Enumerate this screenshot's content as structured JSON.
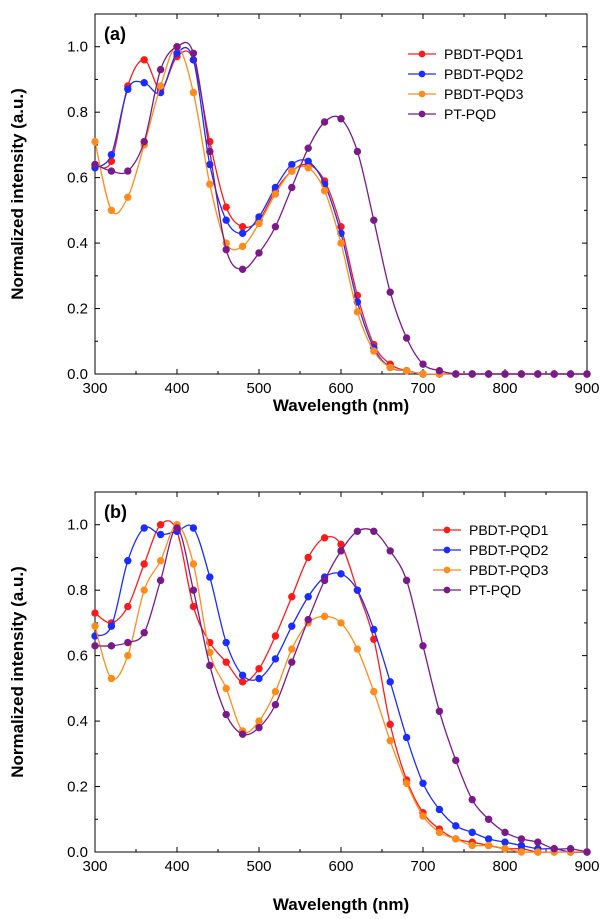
{
  "colors": {
    "PBDT-PQD1": "#ff1a1a",
    "PBDT-PQD2": "#1a2cff",
    "PBDT-PQD3": "#ff8c1a",
    "PT-PQD": "#7a1a8a"
  },
  "chart_data": [
    {
      "type": "line",
      "panel_label": "(a)",
      "xlabel": "Wavelength (nm)",
      "ylabel": "Normalized intensity (a.u.)",
      "xlim": [
        300,
        900
      ],
      "ylim": [
        0.0,
        1.1
      ],
      "xticks": [
        "300",
        "400",
        "500",
        "600",
        "700",
        "800",
        "900"
      ],
      "yticks": [
        "0.0",
        "0.2",
        "0.4",
        "0.6",
        "0.8",
        "1.0"
      ],
      "legend_position": "top-right",
      "x": [
        300,
        320,
        340,
        360,
        380,
        400,
        420,
        440,
        460,
        480,
        500,
        520,
        540,
        560,
        580,
        600,
        620,
        640,
        660,
        680,
        700,
        720,
        740,
        760,
        780,
        800,
        820,
        840,
        860,
        880,
        900
      ],
      "series": [
        {
          "name": "PBDT-PQD1",
          "values": [
            0.64,
            0.65,
            0.88,
            0.96,
            0.87,
            0.97,
            0.96,
            0.71,
            0.51,
            0.45,
            0.47,
            0.56,
            0.62,
            0.64,
            0.59,
            0.45,
            0.24,
            0.09,
            0.03,
            0.01,
            0.0,
            0.0,
            0.0,
            0.0,
            0.0,
            0.0,
            0.0,
            0.0,
            0.0,
            0.0,
            0.0
          ]
        },
        {
          "name": "PBDT-PQD2",
          "values": [
            0.63,
            0.67,
            0.87,
            0.89,
            0.86,
            0.98,
            0.96,
            0.64,
            0.47,
            0.43,
            0.48,
            0.57,
            0.64,
            0.65,
            0.58,
            0.43,
            0.22,
            0.08,
            0.02,
            0.01,
            0.0,
            0.0,
            0.0,
            0.0,
            0.0,
            0.0,
            0.0,
            0.0,
            0.0,
            0.0,
            0.0
          ]
        },
        {
          "name": "PBDT-PQD3",
          "values": [
            0.71,
            0.5,
            0.54,
            0.7,
            0.88,
            1.0,
            0.86,
            0.58,
            0.4,
            0.39,
            0.46,
            0.55,
            0.62,
            0.63,
            0.56,
            0.4,
            0.19,
            0.07,
            0.02,
            0.01,
            0.0,
            0.0,
            0.0,
            0.0,
            0.0,
            0.0,
            0.0,
            0.0,
            0.0,
            0.0,
            0.0
          ]
        },
        {
          "name": "PT-PQD",
          "values": [
            0.64,
            0.62,
            0.62,
            0.71,
            0.93,
            1.0,
            0.98,
            0.68,
            0.38,
            0.32,
            0.37,
            0.45,
            0.57,
            0.69,
            0.77,
            0.78,
            0.68,
            0.47,
            0.25,
            0.11,
            0.03,
            0.01,
            0.0,
            0.0,
            0.0,
            0.0,
            0.0,
            0.0,
            0.0,
            0.0,
            0.0
          ]
        }
      ]
    },
    {
      "type": "line",
      "panel_label": "(b)",
      "xlabel": "Wavelength (nm)",
      "ylabel": "Normalized intensity (a.u.)",
      "xlim": [
        300,
        900
      ],
      "ylim": [
        0.0,
        1.1
      ],
      "xticks": [
        "300",
        "400",
        "500",
        "600",
        "700",
        "800",
        "900"
      ],
      "yticks": [
        "0.0",
        "0.2",
        "0.4",
        "0.6",
        "0.8",
        "1.0"
      ],
      "legend_position": "top-right",
      "x": [
        300,
        320,
        340,
        360,
        380,
        400,
        420,
        440,
        460,
        480,
        500,
        520,
        540,
        560,
        580,
        600,
        620,
        640,
        660,
        680,
        700,
        720,
        740,
        760,
        780,
        800,
        820,
        840,
        860,
        880,
        900
      ],
      "series": [
        {
          "name": "PBDT-PQD1",
          "values": [
            0.73,
            0.7,
            0.75,
            0.88,
            1.0,
            0.98,
            0.75,
            0.64,
            0.58,
            0.52,
            0.56,
            0.66,
            0.78,
            0.9,
            0.96,
            0.94,
            0.8,
            0.65,
            0.39,
            0.22,
            0.12,
            0.07,
            0.04,
            0.03,
            0.02,
            0.01,
            0.01,
            0.0,
            0.0,
            0.0,
            0.0
          ]
        },
        {
          "name": "PBDT-PQD2",
          "values": [
            0.66,
            0.69,
            0.89,
            0.99,
            0.97,
            0.98,
            0.99,
            0.84,
            0.64,
            0.54,
            0.53,
            0.59,
            0.69,
            0.78,
            0.84,
            0.85,
            0.8,
            0.68,
            0.52,
            0.35,
            0.21,
            0.13,
            0.08,
            0.06,
            0.04,
            0.03,
            0.02,
            0.01,
            0.01,
            0.0,
            0.0
          ]
        },
        {
          "name": "PBDT-PQD3",
          "values": [
            0.69,
            0.53,
            0.6,
            0.8,
            0.89,
            1.0,
            0.88,
            0.61,
            0.5,
            0.37,
            0.4,
            0.49,
            0.62,
            0.7,
            0.72,
            0.7,
            0.62,
            0.49,
            0.34,
            0.21,
            0.11,
            0.06,
            0.04,
            0.02,
            0.02,
            0.01,
            0.0,
            0.0,
            0.0,
            0.0,
            0.0
          ]
        },
        {
          "name": "PT-PQD",
          "values": [
            0.63,
            0.63,
            0.64,
            0.67,
            0.83,
            0.99,
            0.8,
            0.57,
            0.42,
            0.36,
            0.38,
            0.45,
            0.58,
            0.71,
            0.83,
            0.92,
            0.98,
            0.98,
            0.92,
            0.83,
            0.63,
            0.43,
            0.28,
            0.16,
            0.1,
            0.06,
            0.04,
            0.03,
            0.01,
            0.01,
            0.0
          ]
        }
      ]
    }
  ]
}
